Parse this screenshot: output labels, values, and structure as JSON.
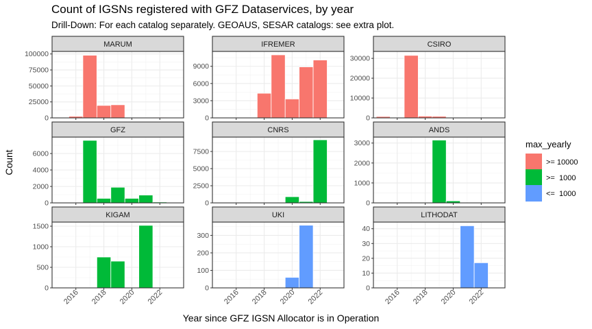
{
  "title": "Count of IGSNs registered with GFZ Dataservices, by year",
  "subtitle": "Drill-Down: For each catalog separately. GEOAUS, SESAR catalogs: see extra plot.",
  "chart_data": {
    "type": "bar",
    "xlabel": "Year since GFZ IGSN Allocator is in Operation",
    "ylabel": "Count",
    "x_ticks": [
      2016,
      2018,
      2020,
      2022
    ],
    "xlim": [
      2014.3,
      2023.7
    ],
    "x_scale": "shared",
    "y_scale": "free",
    "grid": true,
    "legend": {
      "title": "max_yearly",
      "position": "right",
      "entries": [
        {
          "label": ">= 10000",
          "color": "#F8766D"
        },
        {
          "label": ">=  1000",
          "color": "#00BA38"
        },
        {
          "label": "<=  1000",
          "color": "#619CFF"
        }
      ]
    },
    "panels": [
      {
        "name": "MARUM",
        "color": "#F8766D",
        "ylim": [
          0,
          104000
        ],
        "y_ticks": [
          0,
          25000,
          50000,
          75000,
          100000
        ],
        "bars": [
          {
            "x": 2016,
            "y": 2500
          },
          {
            "x": 2017,
            "y": 98000
          },
          {
            "x": 2018,
            "y": 19500
          },
          {
            "x": 2019,
            "y": 20500
          },
          {
            "x": 2022,
            "y": 1000
          }
        ]
      },
      {
        "name": "IFREMER",
        "color": "#F8766D",
        "ylim": [
          0,
          11600
        ],
        "y_ticks": [
          0,
          3000,
          6000,
          9000
        ],
        "bars": [
          {
            "x": 2018,
            "y": 4300
          },
          {
            "x": 2019,
            "y": 11000
          },
          {
            "x": 2020,
            "y": 3300
          },
          {
            "x": 2021,
            "y": 8900
          },
          {
            "x": 2022,
            "y": 10100
          }
        ]
      },
      {
        "name": "CSIRO",
        "color": "#F8766D",
        "ylim": [
          0,
          33500
        ],
        "y_ticks": [
          0,
          10000,
          20000,
          30000
        ],
        "bars": [
          {
            "x": 2015,
            "y": 700
          },
          {
            "x": 2016,
            "y": 300
          },
          {
            "x": 2017,
            "y": 31500
          },
          {
            "x": 2018,
            "y": 900
          },
          {
            "x": 2019,
            "y": 800
          },
          {
            "x": 2020,
            "y": 300
          },
          {
            "x": 2021,
            "y": 300
          }
        ]
      },
      {
        "name": "GFZ",
        "color": "#00BA38",
        "ylim": [
          0,
          8000
        ],
        "y_ticks": [
          0,
          2000,
          4000,
          6000
        ],
        "bars": [
          {
            "x": 2017,
            "y": 7600
          },
          {
            "x": 2018,
            "y": 550
          },
          {
            "x": 2019,
            "y": 1900
          },
          {
            "x": 2020,
            "y": 550
          },
          {
            "x": 2021,
            "y": 950
          },
          {
            "x": 2022,
            "y": 100
          }
        ]
      },
      {
        "name": "CNRS",
        "color": "#00BA38",
        "ylim": [
          0,
          9600
        ],
        "y_ticks": [
          0,
          2500,
          5000,
          7500
        ],
        "bars": [
          {
            "x": 2020,
            "y": 900
          },
          {
            "x": 2021,
            "y": 200
          },
          {
            "x": 2022,
            "y": 9200
          }
        ]
      },
      {
        "name": "ANDS",
        "color": "#00BA38",
        "ylim": [
          0,
          3300
        ],
        "y_ticks": [
          0,
          1000,
          2000,
          3000
        ],
        "bars": [
          {
            "x": 2018,
            "y": 20
          },
          {
            "x": 2019,
            "y": 3150
          },
          {
            "x": 2020,
            "y": 100
          }
        ]
      },
      {
        "name": "KIGAM",
        "color": "#00BA38",
        "ylim": [
          0,
          1600
        ],
        "y_ticks": [
          0,
          500,
          1000,
          1500
        ],
        "bars": [
          {
            "x": 2018,
            "y": 750
          },
          {
            "x": 2019,
            "y": 650
          },
          {
            "x": 2021,
            "y": 1520
          }
        ]
      },
      {
        "name": "UKI",
        "color": "#619CFF",
        "ylim": [
          0,
          376
        ],
        "y_ticks": [
          0,
          100,
          200,
          300
        ],
        "bars": [
          {
            "x": 2020,
            "y": 60
          },
          {
            "x": 2021,
            "y": 358
          }
        ]
      },
      {
        "name": "LITHODAT",
        "color": "#619CFF",
        "ylim": [
          0,
          44.5
        ],
        "y_ticks": [
          0,
          10,
          20,
          30,
          40
        ],
        "bars": [
          {
            "x": 2021,
            "y": 42
          },
          {
            "x": 2022,
            "y": 17
          }
        ]
      }
    ]
  }
}
